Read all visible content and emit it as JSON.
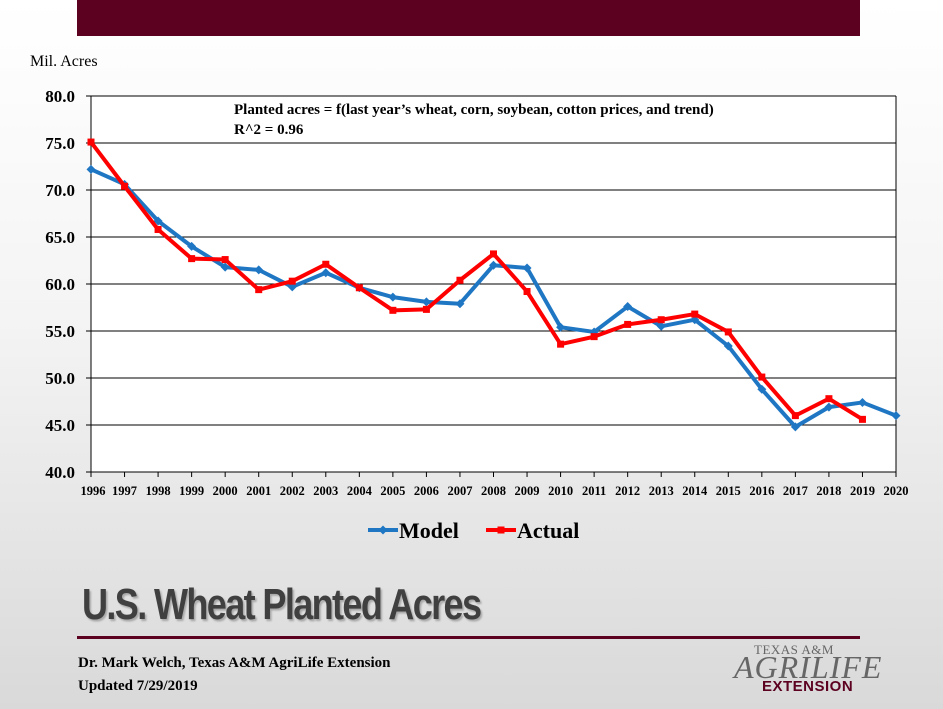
{
  "chart_data": {
    "type": "line",
    "ylabel": "Mil. Acres",
    "ylim": [
      40.0,
      80.0
    ],
    "yticks": [
      "40.0",
      "45.0",
      "50.0",
      "55.0",
      "60.0",
      "65.0",
      "70.0",
      "75.0",
      "80.0"
    ],
    "grid": true,
    "legend_position": "bottom",
    "annotation": {
      "line1": "Planted acres = f(last year’s wheat, corn, soybean, cotton prices, and trend)",
      "line2": "R^2 = 0.96"
    },
    "categories": [
      "1996",
      "1997",
      "1998",
      "1999",
      "2000",
      "2001",
      "2002",
      "2003",
      "2004",
      "2005",
      "2006",
      "2007",
      "2008",
      "2009",
      "2010",
      "2011",
      "2012",
      "2013",
      "2014",
      "2015",
      "2016",
      "2017",
      "2018",
      "2019",
      "2020"
    ],
    "series": [
      {
        "name": "Model",
        "color": "#1f77c4",
        "marker": "diamond",
        "values": [
          72.2,
          70.6,
          66.7,
          64.0,
          61.8,
          61.5,
          59.7,
          61.2,
          59.6,
          58.6,
          58.1,
          57.9,
          62.0,
          61.7,
          55.4,
          54.9,
          57.6,
          55.5,
          56.2,
          53.4,
          48.8,
          44.8,
          46.9,
          47.4,
          46.0
        ]
      },
      {
        "name": "Actual",
        "color": "#ff0000",
        "marker": "square",
        "values": [
          75.1,
          70.4,
          65.8,
          62.7,
          62.6,
          59.4,
          60.3,
          62.1,
          59.6,
          57.2,
          57.3,
          60.4,
          63.2,
          59.2,
          53.6,
          54.4,
          55.7,
          56.2,
          56.8,
          54.9,
          50.1,
          46.0,
          47.8,
          45.6,
          null
        ]
      }
    ]
  },
  "slide": {
    "title": "U.S. Wheat Planted Acres",
    "footer_line1": "Dr. Mark Welch, Texas A&M AgriLife Extension",
    "footer_line2": "Updated 7/29/2019"
  },
  "logo": {
    "line1": "TEXAS A&M",
    "line2": "AGRILIFE",
    "line3": "EXTENSION"
  }
}
